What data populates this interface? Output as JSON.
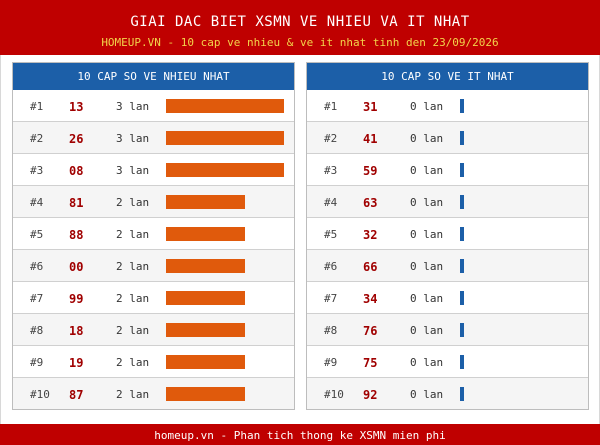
{
  "header": {
    "title": "GIAI DAC BIET XSMN VE NHIEU VA IT NHAT",
    "subtitle": "HOMEUP.VN - 10 cap ve nhieu & ve it nhat tinh den 23/09/2026"
  },
  "left_panel": {
    "title": "10 CAP SO VE NHIEU NHAT",
    "bar_color": "#e05a0c",
    "max_count": 3,
    "rows": [
      {
        "rank": "#1",
        "number": "13",
        "count_label": "3 lan",
        "count": 3
      },
      {
        "rank": "#2",
        "number": "26",
        "count_label": "3 lan",
        "count": 3
      },
      {
        "rank": "#3",
        "number": "08",
        "count_label": "3 lan",
        "count": 3
      },
      {
        "rank": "#4",
        "number": "81",
        "count_label": "2 lan",
        "count": 2
      },
      {
        "rank": "#5",
        "number": "88",
        "count_label": "2 lan",
        "count": 2
      },
      {
        "rank": "#6",
        "number": "00",
        "count_label": "2 lan",
        "count": 2
      },
      {
        "rank": "#7",
        "number": "99",
        "count_label": "2 lan",
        "count": 2
      },
      {
        "rank": "#8",
        "number": "18",
        "count_label": "2 lan",
        "count": 2
      },
      {
        "rank": "#9",
        "number": "19",
        "count_label": "2 lan",
        "count": 2
      },
      {
        "rank": "#10",
        "number": "87",
        "count_label": "2 lan",
        "count": 2
      }
    ]
  },
  "right_panel": {
    "title": "10 CAP SO VE IT NHAT",
    "bar_color": "#1c5fa8",
    "rows": [
      {
        "rank": "#1",
        "number": "31",
        "count_label": "0 lan",
        "count": 0
      },
      {
        "rank": "#2",
        "number": "41",
        "count_label": "0 lan",
        "count": 0
      },
      {
        "rank": "#3",
        "number": "59",
        "count_label": "0 lan",
        "count": 0
      },
      {
        "rank": "#4",
        "number": "63",
        "count_label": "0 lan",
        "count": 0
      },
      {
        "rank": "#5",
        "number": "32",
        "count_label": "0 lan",
        "count": 0
      },
      {
        "rank": "#6",
        "number": "66",
        "count_label": "0 lan",
        "count": 0
      },
      {
        "rank": "#7",
        "number": "34",
        "count_label": "0 lan",
        "count": 0
      },
      {
        "rank": "#8",
        "number": "76",
        "count_label": "0 lan",
        "count": 0
      },
      {
        "rank": "#9",
        "number": "75",
        "count_label": "0 lan",
        "count": 0
      },
      {
        "rank": "#10",
        "number": "92",
        "count_label": "0 lan",
        "count": 0
      }
    ]
  },
  "footer": {
    "text": "homeup.vn - Phan tich thong ke XSMN mien phi"
  },
  "colors": {
    "header_bg": "#bf0000",
    "subtitle": "#f2d44a",
    "panel_head_bg": "#1c5fa8",
    "number_text": "#a00000"
  }
}
